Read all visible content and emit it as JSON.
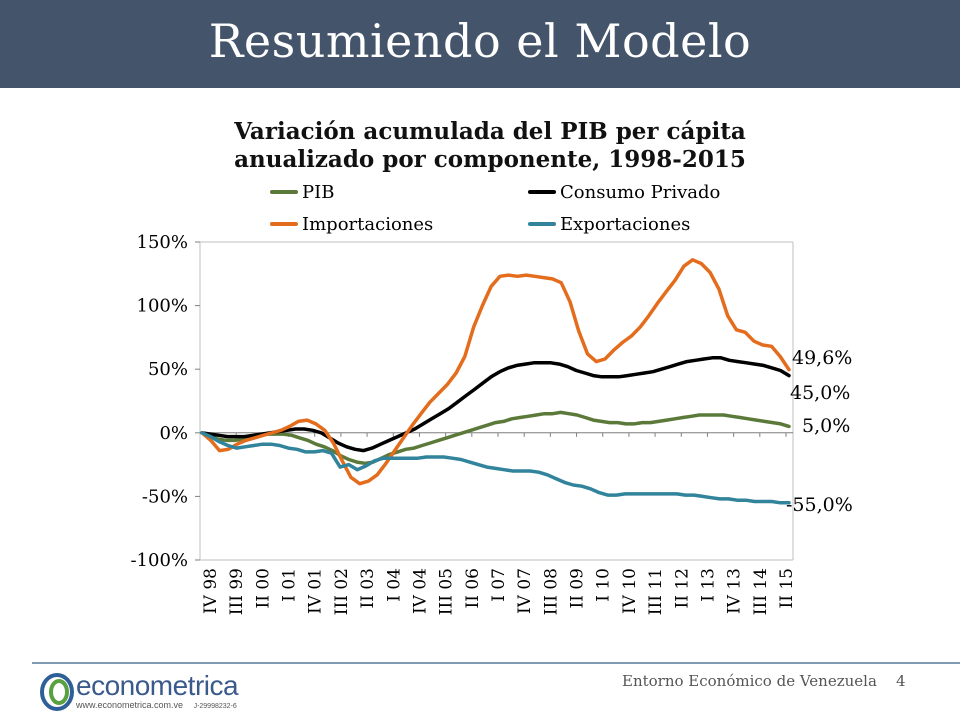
{
  "slide": {
    "title": "Resumiendo el Modelo",
    "footer_text": "Entorno Económico de Venezuela",
    "page_number": "4",
    "logo": {
      "name": "econometrica",
      "url": "www.econometrica.com.ve",
      "rif": "J-29998232-6"
    }
  },
  "chart_data": {
    "type": "line",
    "title": "Variación acumulada del PIB per cápita anualizado por componente, 1998-2015",
    "title_lines": [
      "Variación acumulada del PIB per cápita",
      "anualizado por componente, 1998-2015"
    ],
    "xlabel": "",
    "ylabel": "",
    "ylim": [
      -100,
      150
    ],
    "yticks": [
      -100,
      -50,
      0,
      50,
      100,
      150
    ],
    "ytick_labels": [
      "-100%",
      "-50%",
      "0%",
      "50%",
      "100%",
      "150%"
    ],
    "xtick_labels": [
      "IV 98",
      "III 99",
      "II 00",
      "I 01",
      "IV 01",
      "III 02",
      "II 03",
      "I 04",
      "IV 04",
      "III 05",
      "II 06",
      "I 07",
      "IV 07",
      "III 08",
      "II 09",
      "I 10",
      "IV 10",
      "III 11",
      "II 12",
      "I 13",
      "IV 13",
      "III 14",
      "II 15"
    ],
    "legend_position": "top",
    "grid": false,
    "series": [
      {
        "name": "PIB",
        "color": "#5b7a3a",
        "end_label": "5,0%",
        "values": [
          0,
          -3,
          -5,
          -6,
          -6,
          -5,
          -4,
          -2,
          -1,
          -1,
          -1,
          -2,
          -4,
          -6,
          -9,
          -11,
          -14,
          -18,
          -21,
          -23,
          -24,
          -23,
          -20,
          -17,
          -15,
          -13,
          -12,
          -10,
          -8,
          -6,
          -4,
          -2,
          0,
          2,
          4,
          6,
          8,
          9,
          11,
          12,
          13,
          14,
          15,
          15,
          16,
          15,
          14,
          12,
          10,
          9,
          8,
          8,
          7,
          7,
          8,
          8,
          9,
          10,
          11,
          12,
          13,
          14,
          14,
          14,
          14,
          13,
          12,
          11,
          10,
          9,
          8,
          7,
          5
        ]
      },
      {
        "name": "Consumo Privado",
        "color": "#000000",
        "end_label": "45,0%",
        "values": [
          0,
          -1,
          -2,
          -3,
          -3,
          -3,
          -2,
          -1,
          0,
          1,
          2,
          3,
          3,
          2,
          0,
          -4,
          -8,
          -11,
          -13,
          -14,
          -12,
          -9,
          -6,
          -3,
          0,
          3,
          7,
          11,
          15,
          19,
          24,
          29,
          34,
          39,
          44,
          48,
          51,
          53,
          54,
          55,
          55,
          55,
          54,
          52,
          49,
          47,
          45,
          44,
          44,
          44,
          45,
          46,
          47,
          48,
          50,
          52,
          54,
          56,
          57,
          58,
          59,
          59,
          57,
          56,
          55,
          54,
          53,
          51,
          49,
          45
        ]
      },
      {
        "name": "Importaciones",
        "color": "#e46c1d",
        "end_label": "49,6%",
        "values": [
          0,
          -6,
          -14,
          -13,
          -9,
          -6,
          -4,
          -2,
          0,
          2,
          5,
          9,
          10,
          7,
          2,
          -8,
          -22,
          -35,
          -40,
          -38,
          -33,
          -24,
          -14,
          -4,
          6,
          15,
          24,
          31,
          38,
          47,
          60,
          83,
          100,
          115,
          123,
          124,
          123,
          124,
          123,
          122,
          121,
          118,
          103,
          80,
          62,
          56,
          58,
          65,
          71,
          76,
          83,
          92,
          102,
          111,
          120,
          131,
          136,
          133,
          126,
          113,
          92,
          81,
          79,
          72,
          69,
          68,
          60,
          49.6
        ]
      },
      {
        "name": "Exportaciones",
        "color": "#31849b",
        "end_label": "-55,0%",
        "values": [
          0,
          -3,
          -7,
          -10,
          -12,
          -11,
          -10,
          -9,
          -9,
          -10,
          -12,
          -13,
          -15,
          -15,
          -14,
          -16,
          -27,
          -25,
          -29,
          -26,
          -22,
          -20,
          -20,
          -20,
          -20,
          -20,
          -19,
          -19,
          -19,
          -20,
          -21,
          -23,
          -25,
          -27,
          -28,
          -29,
          -30,
          -30,
          -30,
          -31,
          -33,
          -36,
          -39,
          -41,
          -42,
          -44,
          -47,
          -49,
          -49,
          -48,
          -48,
          -48,
          -48,
          -48,
          -48,
          -48,
          -49,
          -49,
          -50,
          -51,
          -52,
          -52,
          -53,
          -53,
          -54,
          -54,
          -54,
          -55,
          -55
        ]
      }
    ]
  }
}
